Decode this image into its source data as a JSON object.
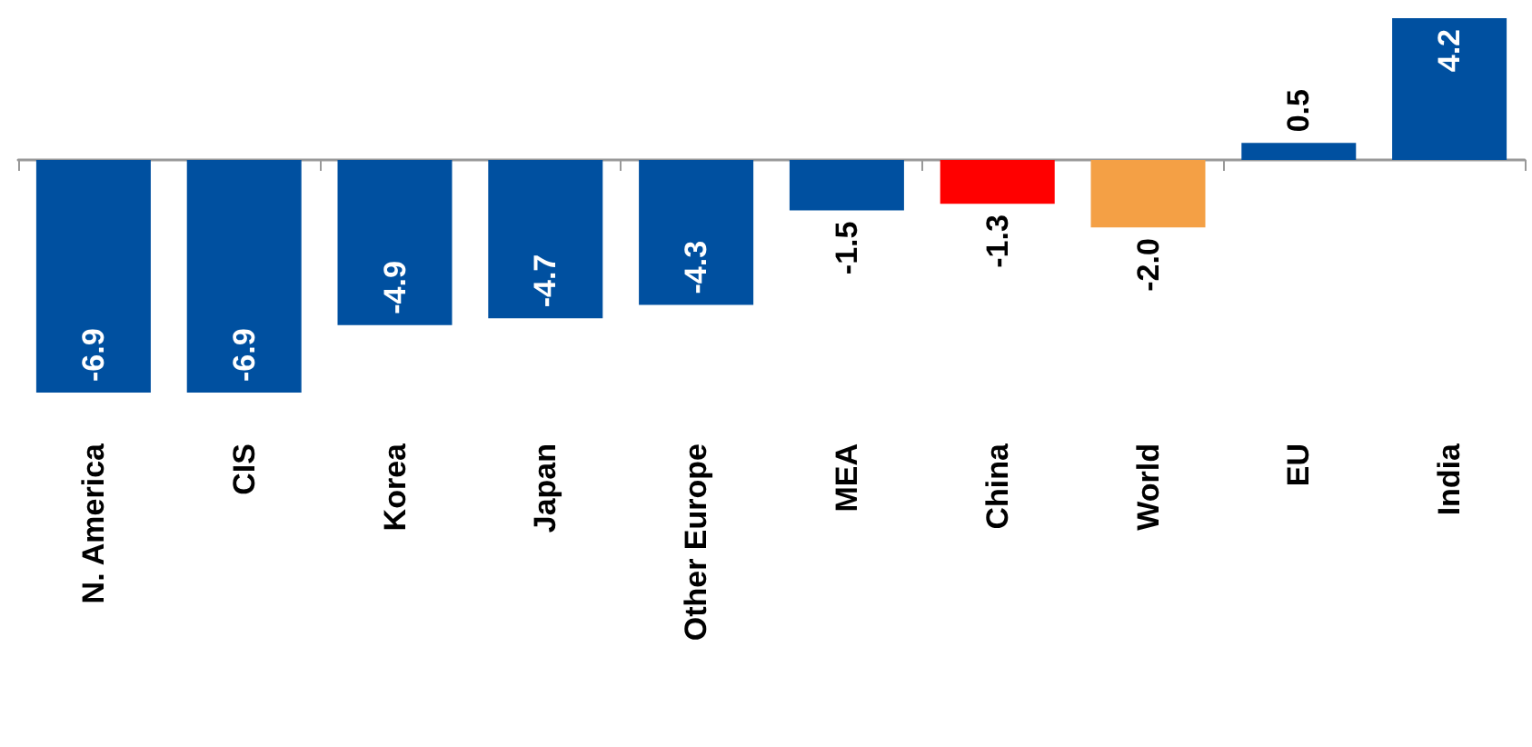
{
  "chart_data": {
    "type": "bar",
    "categories": [
      "N. America",
      "CIS",
      "Korea",
      "Japan",
      "Other Europe",
      "MEA",
      "China",
      "World",
      "EU",
      "India"
    ],
    "values": [
      -6.9,
      -6.9,
      -4.9,
      -4.7,
      -4.3,
      -1.5,
      -1.3,
      -2.0,
      0.5,
      4.2
    ],
    "value_labels": [
      "-6.9",
      "-6.9",
      "-4.9",
      "-4.7",
      "-4.3",
      "-1.5",
      "-1.3",
      "-2.0",
      "0.5",
      "4.2"
    ],
    "colors": [
      "#0050a0",
      "#0050a0",
      "#0050a0",
      "#0050a0",
      "#0050a0",
      "#0050a0",
      "#ff0000",
      "#f4a045",
      "#0050a0",
      "#0050a0"
    ]
  }
}
